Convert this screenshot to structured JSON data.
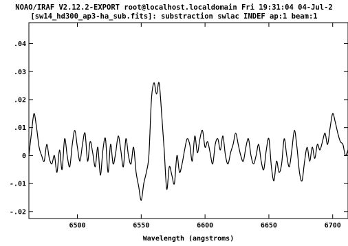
{
  "chart_data": {
    "type": "line",
    "title": "NOAO/IRAF V2.12.2-EXPORT root@localhost.localdomain Fri 19:31:04 04-Jul-2",
    "subtitle": "[sw14_hd300_ap3-ha_sub.fits]: substraction swlac INDEF ap:1 beam:1",
    "xlabel": "Wavelength (angstroms)",
    "ylabel": "",
    "xlim": [
      6462,
      6712
    ],
    "ylim": [
      -0.0225,
      0.0475
    ],
    "x_ticks": [
      6500,
      6550,
      6600,
      6650,
      6700
    ],
    "x_tick_labels": [
      "6500",
      "6550",
      "6600",
      "6650",
      "6700"
    ],
    "y_ticks": [
      -0.02,
      -0.01,
      0,
      0.01,
      0.02,
      0.03,
      0.04
    ],
    "y_tick_labels": [
      "-.02",
      "-.01",
      "0",
      ".01",
      ".02",
      ".03",
      ".04"
    ],
    "grid": false,
    "legend": "none",
    "line_color": "#000000",
    "series": [
      {
        "x": [
          6462,
          6464,
          6466,
          6468,
          6470,
          6472,
          6474,
          6476,
          6478,
          6480,
          6482,
          6484,
          6486,
          6488,
          6490,
          6492,
          6494,
          6496,
          6498,
          6500,
          6502,
          6504,
          6506,
          6508,
          6510,
          6512,
          6514,
          6516,
          6518,
          6520,
          6522,
          6524,
          6526,
          6528,
          6530,
          6532,
          6534,
          6536,
          6538,
          6540,
          6542,
          6544,
          6546,
          6548,
          6550,
          6552,
          6554,
          6556,
          6558,
          6560,
          6562,
          6564,
          6566,
          6568,
          6570,
          6572,
          6574,
          6576,
          6578,
          6580,
          6582,
          6584,
          6586,
          6588,
          6590,
          6592,
          6594,
          6596,
          6598,
          6600,
          6602,
          6604,
          6606,
          6608,
          6610,
          6612,
          6614,
          6616,
          6618,
          6620,
          6622,
          6624,
          6626,
          6628,
          6630,
          6632,
          6634,
          6636,
          6638,
          6640,
          6642,
          6644,
          6646,
          6648,
          6650,
          6652,
          6654,
          6656,
          6658,
          6660,
          6662,
          6664,
          6666,
          6668,
          6670,
          6672,
          6674,
          6676,
          6678,
          6680,
          6682,
          6684,
          6686,
          6688,
          6690,
          6692,
          6694,
          6696,
          6698,
          6700,
          6702,
          6704,
          6706,
          6708,
          6710,
          6712
        ],
        "values": [
          0.0,
          0.008,
          0.015,
          0.01,
          0.003,
          0.0,
          -0.002,
          0.004,
          -0.001,
          -0.003,
          0.0,
          -0.006,
          0.002,
          -0.005,
          0.006,
          0.0,
          -0.004,
          0.004,
          0.009,
          0.003,
          -0.002,
          0.004,
          0.008,
          -0.002,
          0.005,
          0.001,
          -0.004,
          0.003,
          -0.007,
          0.002,
          0.006,
          -0.006,
          0.004,
          -0.003,
          0.001,
          0.007,
          0.002,
          -0.004,
          0.006,
          0.0,
          -0.003,
          0.003,
          -0.006,
          -0.011,
          -0.016,
          -0.01,
          -0.006,
          0.0,
          0.02,
          0.026,
          0.022,
          0.026,
          0.015,
          0.002,
          -0.012,
          -0.004,
          -0.007,
          -0.01,
          0.0,
          -0.006,
          -0.003,
          0.002,
          0.006,
          0.004,
          -0.002,
          0.007,
          0.001,
          0.006,
          0.009,
          0.003,
          0.005,
          0.001,
          -0.003,
          0.004,
          0.006,
          0.002,
          0.007,
          0.0,
          -0.003,
          0.001,
          0.004,
          0.008,
          0.004,
          0.0,
          -0.002,
          0.003,
          0.006,
          0.0,
          -0.003,
          0.0,
          0.004,
          -0.002,
          -0.005,
          0.002,
          0.006,
          -0.004,
          -0.009,
          -0.002,
          -0.006,
          -0.003,
          0.006,
          0.0,
          -0.004,
          0.002,
          0.009,
          0.003,
          -0.006,
          -0.009,
          -0.002,
          0.003,
          -0.002,
          0.003,
          -0.001,
          0.004,
          0.002,
          0.005,
          0.008,
          0.004,
          0.01,
          0.015,
          0.012,
          0.008,
          0.005,
          0.004,
          0.0,
          0.002
        ]
      }
    ]
  }
}
